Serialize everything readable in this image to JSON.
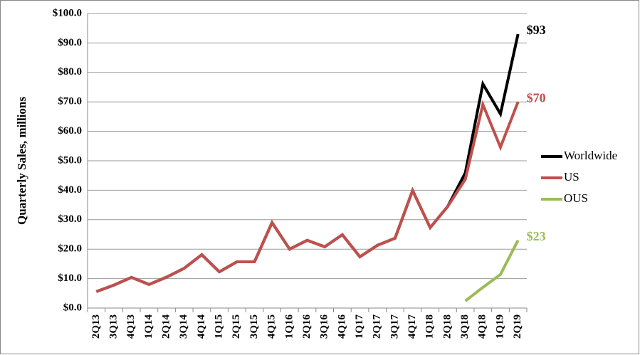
{
  "chart_data": {
    "type": "line",
    "y_label": "Quarterly Sales, millions",
    "categories": [
      "2Q13",
      "3Q13",
      "4Q13",
      "1Q14",
      "2Q14",
      "3Q14",
      "4Q14",
      "1Q15",
      "2Q15",
      "3Q15",
      "4Q15",
      "1Q16",
      "2Q16",
      "3Q16",
      "4Q16",
      "1Q17",
      "2Q17",
      "3Q17",
      "4Q17",
      "1Q18",
      "2Q18",
      "3Q18",
      "4Q18",
      "1Q19",
      "2Q19"
    ],
    "series": [
      {
        "name": "Worldwide",
        "color": "#000000",
        "values": [
          5.6,
          7.8,
          10.4,
          8.0,
          10.5,
          13.5,
          18.1,
          12.3,
          15.7,
          15.7,
          29.0,
          20.0,
          23.0,
          20.8,
          24.9,
          17.4,
          21.3,
          23.7,
          39.9,
          27.3,
          34.5,
          45.9,
          76.1,
          65.9,
          93
        ],
        "value_labels": [
          null,
          null,
          null,
          null,
          null,
          null,
          null,
          null,
          null,
          null,
          null,
          null,
          null,
          null,
          null,
          null,
          null,
          null,
          null,
          null,
          null,
          null,
          null,
          null,
          "$93"
        ]
      },
      {
        "name": "US",
        "color": "#c0504d",
        "values": [
          5.6,
          7.8,
          10.4,
          8.0,
          10.5,
          13.5,
          18.1,
          12.3,
          15.7,
          15.7,
          29.0,
          20.0,
          23.0,
          20.8,
          24.9,
          17.4,
          21.3,
          23.7,
          39.9,
          27.3,
          34.5,
          43.7,
          69.1,
          54.6,
          70
        ],
        "value_labels": [
          null,
          null,
          null,
          null,
          null,
          null,
          null,
          null,
          null,
          null,
          null,
          null,
          null,
          null,
          null,
          null,
          null,
          null,
          null,
          null,
          null,
          null,
          null,
          null,
          "$70"
        ]
      },
      {
        "name": "OUS",
        "color": "#9bbb59",
        "values": [
          null,
          null,
          null,
          null,
          null,
          null,
          null,
          null,
          null,
          null,
          null,
          null,
          null,
          null,
          null,
          null,
          null,
          null,
          null,
          null,
          null,
          2.4,
          7.0,
          11.4,
          23
        ],
        "value_labels": [
          null,
          null,
          null,
          null,
          null,
          null,
          null,
          null,
          null,
          null,
          null,
          null,
          null,
          null,
          null,
          null,
          null,
          null,
          null,
          null,
          null,
          null,
          null,
          null,
          "$23"
        ]
      }
    ],
    "ylim": [
      0,
      100
    ],
    "yticks": [
      {
        "value": 0,
        "label": "$0.0"
      },
      {
        "value": 10,
        "label": "$10.0"
      },
      {
        "value": 20,
        "label": "$20.0"
      },
      {
        "value": 30,
        "label": "$30.0"
      },
      {
        "value": 40,
        "label": "$40.0"
      },
      {
        "value": 50,
        "label": "$50.0"
      },
      {
        "value": 60,
        "label": "$60.0"
      },
      {
        "value": 70,
        "label": "$70.0"
      },
      {
        "value": 80,
        "label": "$80.0"
      },
      {
        "value": 90,
        "label": "$90.0"
      },
      {
        "value": 100,
        "label": "$100.0"
      }
    ],
    "grid": true,
    "legend": "right"
  }
}
